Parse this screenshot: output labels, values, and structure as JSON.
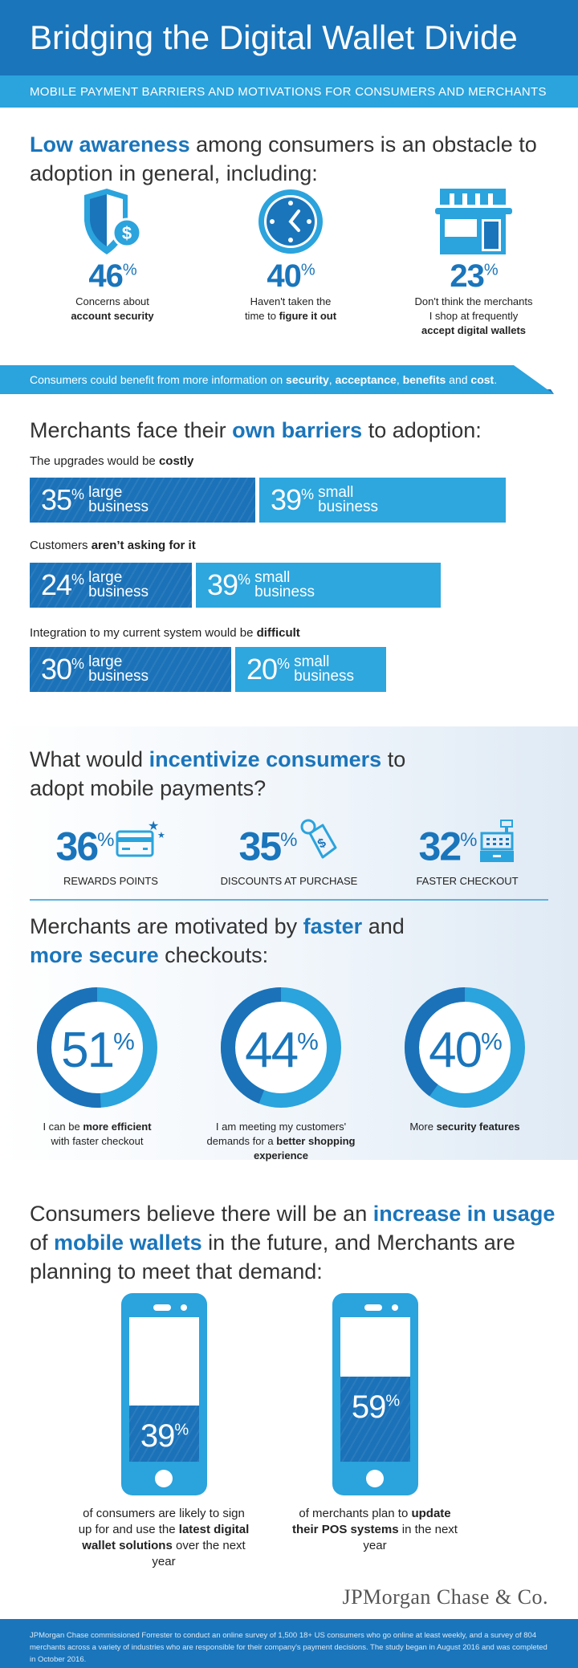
{
  "title": "Bridging the Digital Wallet Divide",
  "subtitle": "MOBILE PAYMENT BARRIERS AND MOTIVATIONS FOR  CONSUMERS AND MERCHANTS",
  "awareness": {
    "heading": {
      "bold": "Low awareness",
      "rest": " among consumers is an obstacle to adoption in general, including:"
    },
    "stats": [
      {
        "icon": "shield-dollar-icon",
        "value": "46",
        "unit": "%",
        "line1": "Concerns about",
        "bold": "account security",
        "tail": ""
      },
      {
        "icon": "clock-icon",
        "value": "40",
        "unit": "%",
        "line1": "Haven't taken the",
        "pre": "time to ",
        "bold": "figure it out"
      },
      {
        "icon": "storefront-icon",
        "value": "23",
        "unit": "%",
        "line1": "Don't think the merchants",
        "line2": "I shop at frequently",
        "bold": "accept digital wallets"
      }
    ],
    "banner": {
      "pre": "Consumers could benefit from more information on ",
      "b1": "security",
      ",": ", ",
      "b2": "acceptance",
      "b3": "benefits",
      "and": " and ",
      "b4": "cost",
      "end": "."
    }
  },
  "merchant_barriers": {
    "heading": {
      "pre": "Merchants face their ",
      "bold": "own barriers",
      "post": " to adoption:"
    },
    "groups": [
      {
        "pre": "The upgrades would be ",
        "bold": "costly",
        "large": "35",
        "small": "39"
      },
      {
        "pre": "Customers ",
        "bold": "aren’t asking for it",
        "large": "24",
        "small": "39"
      },
      {
        "pre": "Integration to my current system would be ",
        "bold": "difficult",
        "large": "30",
        "small": "20"
      }
    ],
    "unit": "%",
    "large_label": [
      "large",
      "business"
    ],
    "small_label": [
      "small",
      "business"
    ]
  },
  "incentives": {
    "heading": {
      "pre": "What would ",
      "bold": "incentivize consumers",
      "post": " to adopt mobile payments?"
    },
    "items": [
      {
        "value": "36",
        "unit": "%",
        "label": "REWARDS POINTS",
        "icon": "credit-card-stars-icon"
      },
      {
        "value": "35",
        "unit": "%",
        "label": "DISCOUNTS AT PURCHASE",
        "icon": "price-tag-dollar-icon"
      },
      {
        "value": "32",
        "unit": "%",
        "label": "FASTER CHECKOUT",
        "icon": "cash-register-icon"
      }
    ]
  },
  "motivations": {
    "heading": {
      "pre": "Merchants are motivated by ",
      "b1": "faster",
      "mid": " and",
      "b2": "more secure",
      "post": " checkouts:"
    },
    "items": [
      {
        "value": 51,
        "unit": "%",
        "pre": "I can be ",
        "bold": "more efficient",
        "post": "with faster checkout"
      },
      {
        "value": 44,
        "unit": "%",
        "pre": "I am meeting my customers' demands for a ",
        "bold": "better shopping experience",
        "post": ""
      },
      {
        "value": 40,
        "unit": "%",
        "pre": "More ",
        "bold": "security features",
        "post": ""
      }
    ]
  },
  "future": {
    "heading": {
      "pre": "Consumers believe there will be an ",
      "b1": "increase in usage",
      "mid": " of ",
      "b2": "mobile wallets",
      "post": " in the future, and Merchants are planning to meet that demand:"
    },
    "phones": [
      {
        "value": 39,
        "unit": "%",
        "pre": "of consumers are likely to sign up for and use the ",
        "bold": "latest digital wallet solutions",
        "post": " over the next year"
      },
      {
        "value": 59,
        "unit": "%",
        "pre": "of merchants plan to ",
        "bold": "update their POS systems",
        "post": " in the next year"
      }
    ]
  },
  "logo": "JPMorgan Chase & Co.",
  "footer": "JPMorgan Chase commissioned Forrester to conduct an online survey of 1,500 18+ US consumers who go online at least weekly, and a survey of 804 merchants across a variety of industries who are responsible for their company's payment decisions. The study began in August 2016 and was completed in October 2016.",
  "colors": {
    "dark_blue": "#1a75bb",
    "light_blue": "#2ba3dd"
  }
}
